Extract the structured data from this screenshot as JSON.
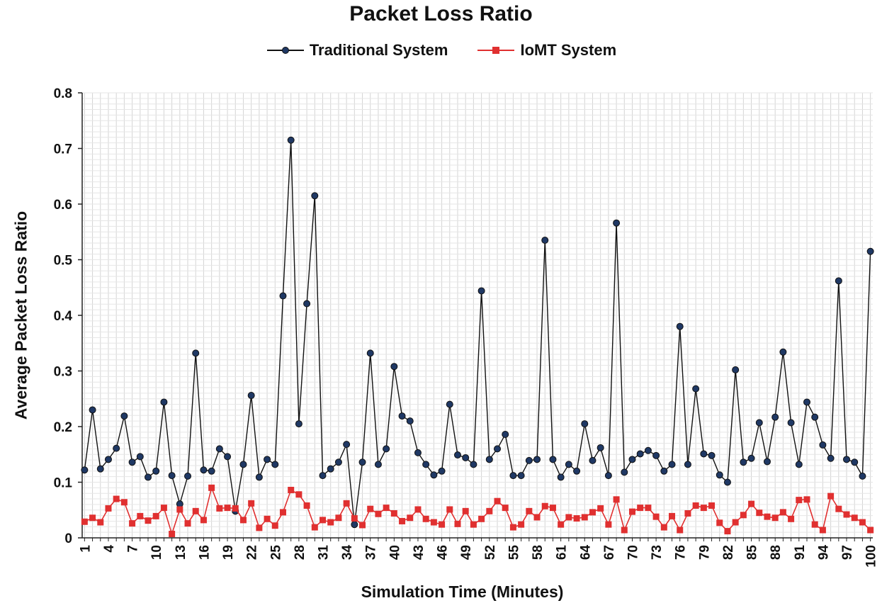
{
  "chart_data": {
    "type": "line",
    "title": "Packet Loss Ratio",
    "xlabel": "Simulation Time (Minutes)",
    "ylabel": "Average Packet Loss Ratio",
    "ylim": [
      0,
      0.8
    ],
    "yticks": [
      "0",
      "0.1",
      "0.2",
      "0.3",
      "0.4",
      "0.5",
      "0.6",
      "0.7",
      "0.8"
    ],
    "x": [
      1,
      2,
      3,
      4,
      5,
      6,
      7,
      8,
      9,
      10,
      11,
      12,
      13,
      14,
      15,
      16,
      17,
      18,
      19,
      20,
      21,
      22,
      23,
      24,
      25,
      26,
      27,
      28,
      29,
      30,
      31,
      32,
      33,
      34,
      35,
      36,
      37,
      38,
      39,
      40,
      41,
      42,
      43,
      44,
      45,
      46,
      47,
      48,
      49,
      50,
      51,
      52,
      53,
      54,
      55,
      56,
      57,
      58,
      59,
      60,
      61,
      62,
      63,
      64,
      65,
      66,
      67,
      68,
      69,
      70,
      71,
      72,
      73,
      74,
      75,
      76,
      77,
      78,
      79,
      80,
      81,
      82,
      83,
      84,
      85,
      86,
      87,
      88,
      89,
      90,
      91,
      92,
      93,
      94,
      95,
      96,
      97,
      98,
      99,
      100
    ],
    "xtick_labels": [
      "1",
      "4",
      "7",
      "10",
      "13",
      "16",
      "19",
      "22",
      "25",
      "28",
      "31",
      "34",
      "37",
      "40",
      "43",
      "46",
      "49",
      "52",
      "55",
      "58",
      "61",
      "64",
      "67",
      "70",
      "73",
      "76",
      "79",
      "82",
      "85",
      "88",
      "91",
      "94",
      "97",
      "100"
    ],
    "grid": true,
    "legend_position": "top-center",
    "series": [
      {
        "name": "Traditional System",
        "color": "#111111",
        "marker_color": "#1f3864",
        "marker": "circle",
        "values": [
          0.122,
          0.23,
          0.124,
          0.141,
          0.161,
          0.219,
          0.136,
          0.146,
          0.109,
          0.12,
          0.244,
          0.112,
          0.061,
          0.111,
          0.332,
          0.122,
          0.12,
          0.16,
          0.146,
          0.048,
          0.132,
          0.256,
          0.109,
          0.141,
          0.132,
          0.435,
          0.715,
          0.205,
          0.421,
          0.615,
          0.112,
          0.124,
          0.136,
          0.168,
          0.024,
          0.136,
          0.332,
          0.132,
          0.16,
          0.308,
          0.219,
          0.21,
          0.153,
          0.132,
          0.113,
          0.12,
          0.24,
          0.149,
          0.144,
          0.132,
          0.444,
          0.141,
          0.16,
          0.186,
          0.112,
          0.112,
          0.139,
          0.141,
          0.535,
          0.141,
          0.109,
          0.132,
          0.12,
          0.205,
          0.139,
          0.162,
          0.112,
          0.566,
          0.118,
          0.141,
          0.151,
          0.157,
          0.148,
          0.12,
          0.132,
          0.38,
          0.132,
          0.268,
          0.151,
          0.148,
          0.113,
          0.1,
          0.302,
          0.136,
          0.143,
          0.207,
          0.137,
          0.217,
          0.334,
          0.207,
          0.132,
          0.244,
          0.217,
          0.167,
          0.143,
          0.462,
          0.141,
          0.136,
          0.111,
          0.515
        ]
      },
      {
        "name": "IoMT System",
        "color": "#e03030",
        "marker_color": "#e03030",
        "marker": "square",
        "values": [
          0.029,
          0.036,
          0.028,
          0.053,
          0.07,
          0.064,
          0.026,
          0.039,
          0.031,
          0.039,
          0.054,
          0.007,
          0.051,
          0.026,
          0.048,
          0.032,
          0.09,
          0.053,
          0.054,
          0.053,
          0.032,
          0.062,
          0.018,
          0.034,
          0.022,
          0.046,
          0.086,
          0.078,
          0.058,
          0.019,
          0.032,
          0.028,
          0.036,
          0.062,
          0.035,
          0.023,
          0.052,
          0.043,
          0.054,
          0.044,
          0.03,
          0.036,
          0.051,
          0.034,
          0.028,
          0.024,
          0.051,
          0.025,
          0.048,
          0.024,
          0.034,
          0.048,
          0.066,
          0.054,
          0.019,
          0.024,
          0.048,
          0.037,
          0.057,
          0.054,
          0.024,
          0.037,
          0.035,
          0.037,
          0.046,
          0.053,
          0.024,
          0.069,
          0.014,
          0.047,
          0.054,
          0.054,
          0.038,
          0.019,
          0.039,
          0.014,
          0.044,
          0.058,
          0.054,
          0.058,
          0.027,
          0.012,
          0.028,
          0.041,
          0.061,
          0.045,
          0.038,
          0.036,
          0.046,
          0.034,
          0.068,
          0.069,
          0.024,
          0.014,
          0.075,
          0.052,
          0.042,
          0.036,
          0.028,
          0.014
        ]
      }
    ]
  }
}
